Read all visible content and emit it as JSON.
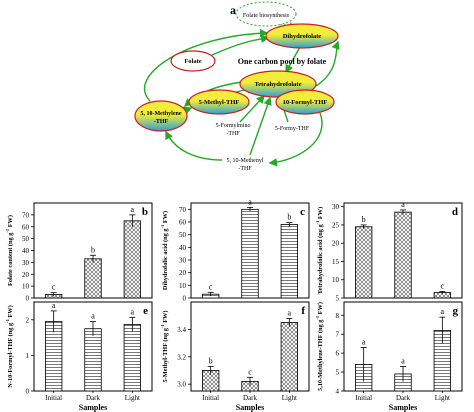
{
  "figure": {
    "panel_a_label": "a",
    "samples_label": "Samples",
    "fw_label": "FW)",
    "ylabel_prefix": {
      "b": "Folate content (ng g",
      "c": "Dihydrofolic acid (ng g",
      "d": "Tetrahydrofolic acid (ng g",
      "e": "N-10-Formyl-THF (ng g",
      "f": "5-Methyl-THF (ng g",
      "g": "5,10-Methylene-THF (ng g"
    },
    "ylabel_exponent": "-1"
  },
  "diagram": {
    "title": "One carbon pool by folate",
    "nodes": {
      "biosynthesis": "Folate biosynthesis",
      "dihydrofolate": "Dihydrofolate",
      "folate": "Folate",
      "tetrahydrofolate": "Tetrahydrofolate",
      "methyl_thf": "5-Methyl-THF",
      "formyl_thf": "10-Formyl-THF",
      "methylene_thf_1": "5, 10-Methylene",
      "methylene_thf_2": "-THF",
      "formimino_1": "5-Formylmino",
      "formimino_2": "-THF",
      "formy_thf": "5-Formy-THF",
      "methenyl_1": "5, 10-Methenyl",
      "methenyl_2": "-THF"
    },
    "colors": {
      "arrow": "#22aa22",
      "node_border": "#cc1f1f",
      "node_top": "#f2ec3a",
      "node_bottom": "#2c9fd6",
      "dashed": "#22aa22"
    }
  },
  "chart_data": [
    {
      "type": "bar",
      "panel": "b",
      "categories": [
        "Initial",
        "Dark",
        "Light"
      ],
      "values": [
        3,
        33,
        65
      ],
      "errors": [
        1.5,
        3,
        5
      ],
      "letters": [
        "c",
        "b",
        "a"
      ],
      "ylim": [
        0,
        80
      ],
      "yticks": [
        "0",
        "10",
        "20",
        "30",
        "40",
        "50",
        "60",
        "70"
      ],
      "ylabel": "Folate content (ng g-1 FW)",
      "xlabel": "",
      "pattern": "cross"
    },
    {
      "type": "bar",
      "panel": "c",
      "categories": [
        "Initial",
        "Dark",
        "Light"
      ],
      "values": [
        3,
        70,
        58
      ],
      "errors": [
        1.5,
        1.5,
        1.5
      ],
      "letters": [
        "c",
        "a",
        "b"
      ],
      "ylim": [
        0,
        75
      ],
      "yticks": [
        "0",
        "10",
        "20",
        "30",
        "40",
        "50",
        "60",
        "70"
      ],
      "ylabel": "Dihydrofolic acid (ng g-1 FW)",
      "xlabel": "",
      "pattern": "horizontal"
    },
    {
      "type": "bar",
      "panel": "d",
      "categories": [
        "Initial",
        "Dark",
        "Light"
      ],
      "values": [
        24.5,
        28.5,
        6.5
      ],
      "errors": [
        0.5,
        0.6,
        0.3
      ],
      "letters": [
        "b",
        "a",
        "c"
      ],
      "ylim": [
        5,
        31
      ],
      "yticks": [
        "5",
        "10",
        "15",
        "20",
        "25",
        "30"
      ],
      "ylabel": "Tetrahydrofolic acid (ng g-1 FW)",
      "xlabel": "",
      "pattern": "cross"
    },
    {
      "type": "bar",
      "panel": "e",
      "categories": [
        "Initial",
        "Dark",
        "Light"
      ],
      "values": [
        1.95,
        1.75,
        1.87
      ],
      "errors": [
        0.3,
        0.2,
        0.2
      ],
      "letters": [
        "a",
        "a",
        "a"
      ],
      "ylim": [
        0,
        2.5
      ],
      "yticks": [
        "0",
        "1",
        "2"
      ],
      "ylabel": "N-10-Formyl-THF (ng g-1 FW)",
      "xlabel": "Samples",
      "pattern": "horizontal"
    },
    {
      "type": "bar",
      "panel": "f",
      "categories": [
        "Initial",
        "Dark",
        "Light"
      ],
      "values": [
        3.1,
        3.02,
        3.45
      ],
      "errors": [
        0.03,
        0.03,
        0.03
      ],
      "letters": [
        "b",
        "c",
        "a"
      ],
      "ylim": [
        2.95,
        3.6
      ],
      "yticks": [
        "3.0",
        "3.2",
        "3.4"
      ],
      "ylabel": "5-Methyl-THF (ng g-1 FW)",
      "xlabel": "Samples",
      "pattern": "cross"
    },
    {
      "type": "bar",
      "panel": "g",
      "categories": [
        "Initial",
        "Dark",
        "Light"
      ],
      "values": [
        5.4,
        4.9,
        7.2
      ],
      "errors": [
        0.9,
        0.4,
        0.7
      ],
      "letters": [
        "a",
        "a",
        "a"
      ],
      "ylim": [
        4,
        8.7
      ],
      "yticks": [
        "4",
        "5",
        "6",
        "7",
        "8"
      ],
      "ylabel": "5,10-Methylene-THF (ng g-1 FW)",
      "xlabel": "Samples",
      "pattern": "horizontal"
    }
  ]
}
